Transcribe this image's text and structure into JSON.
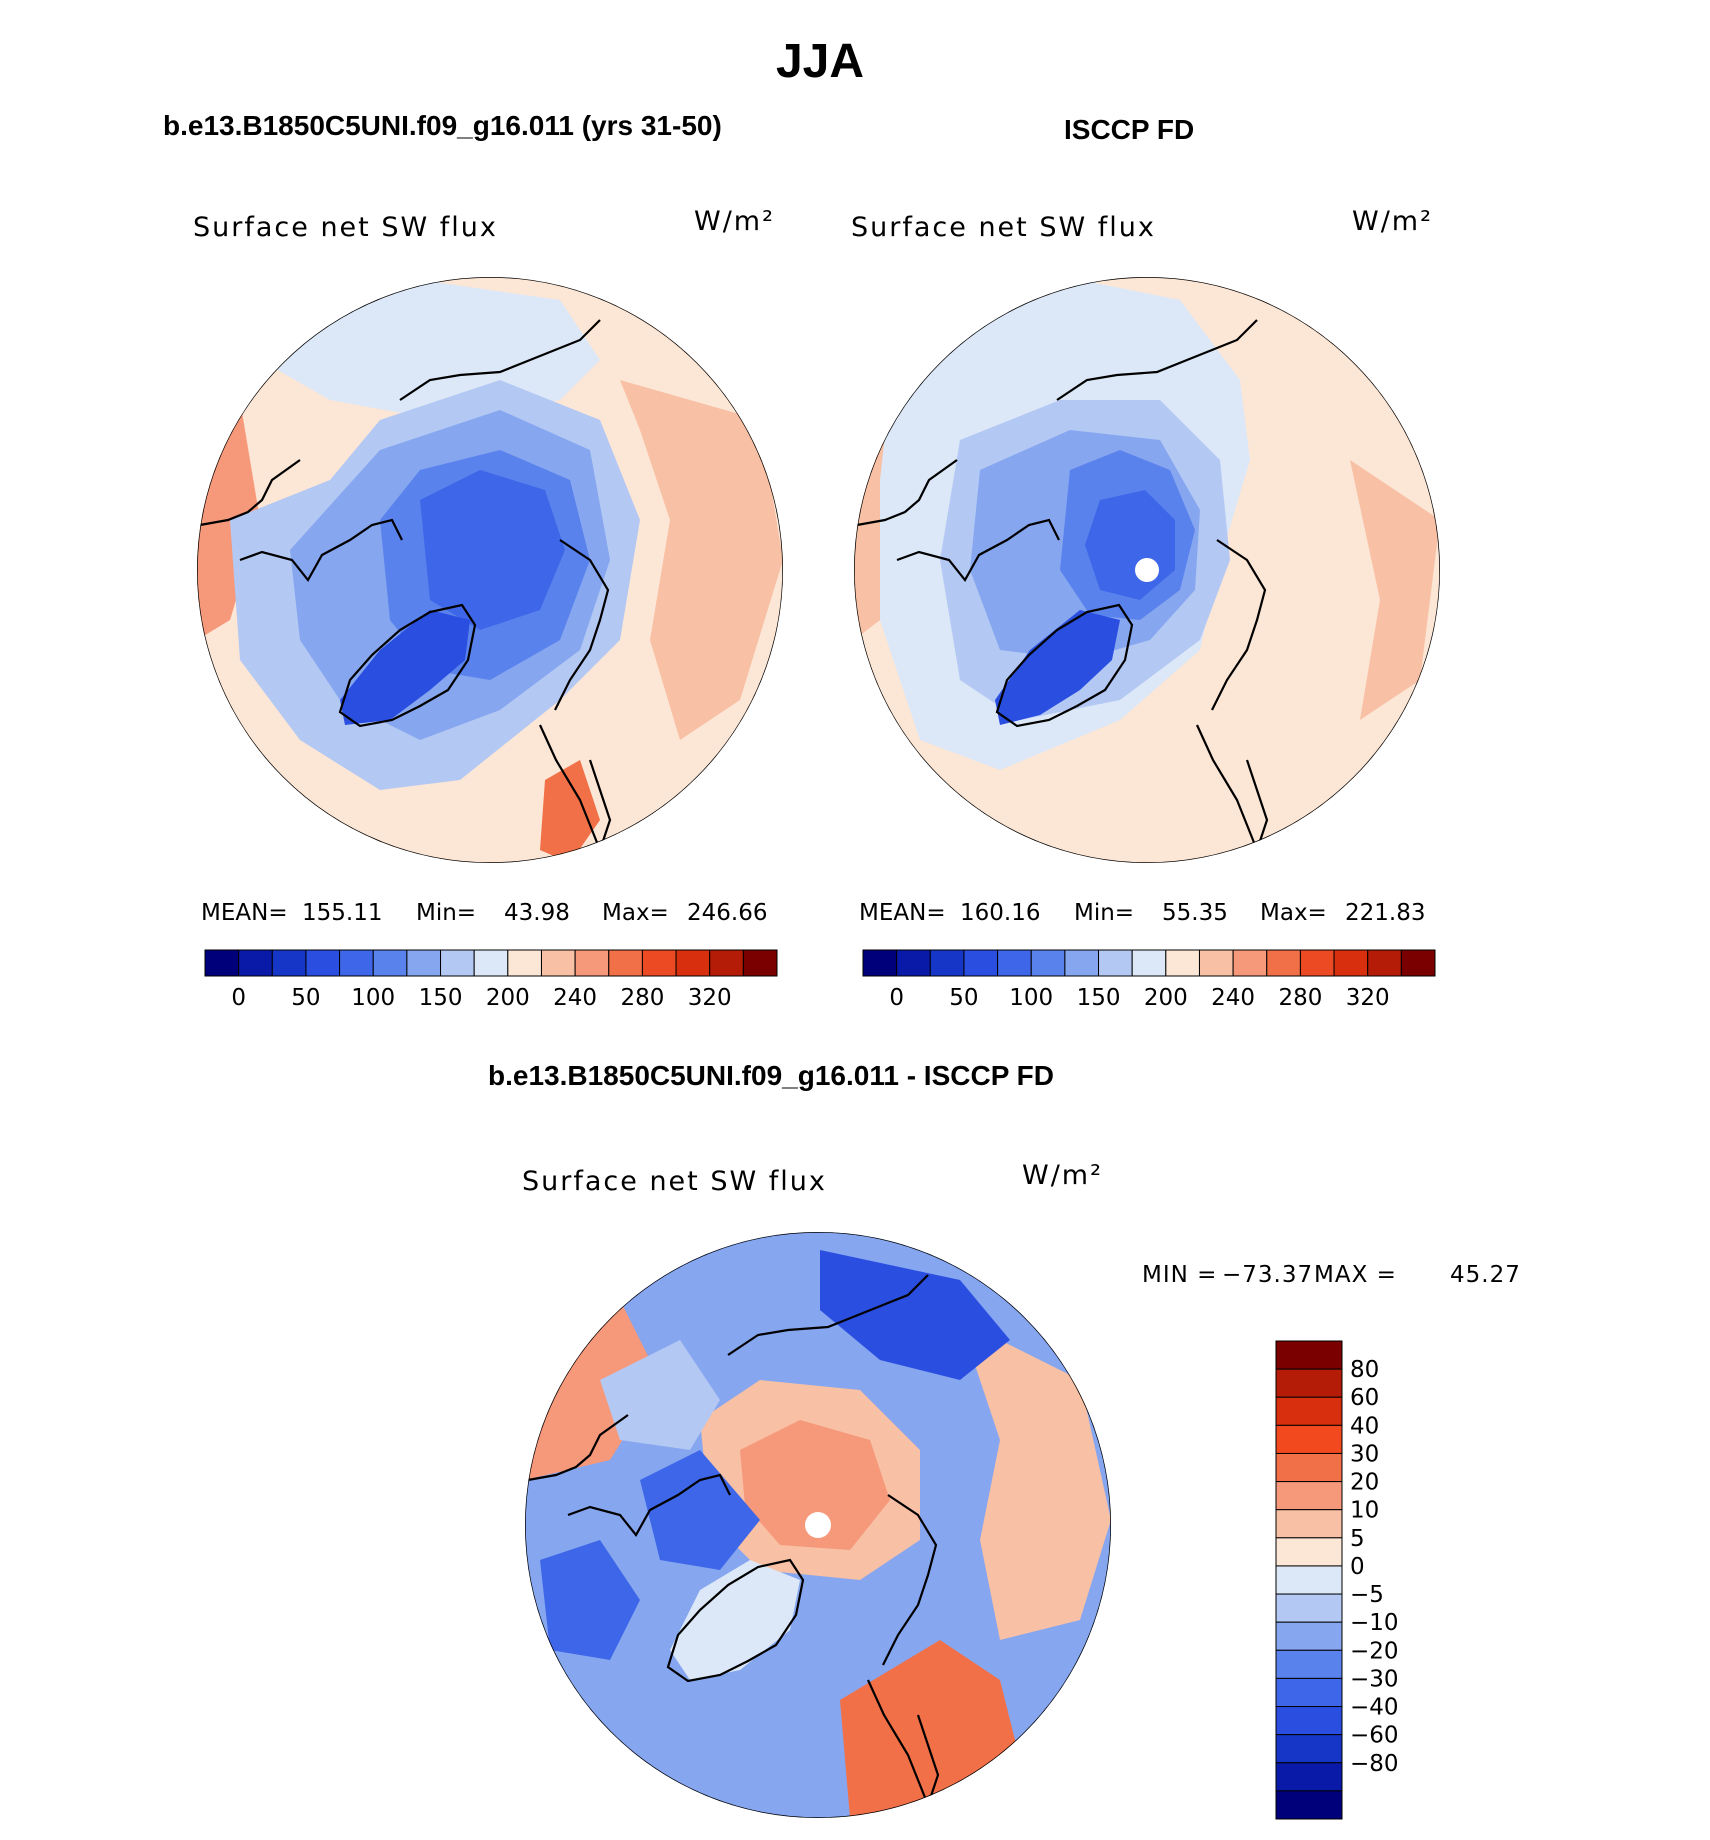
{
  "page": {
    "main_title": "JJA",
    "left_title": "b.e13.B1850C5UNI.f09_g16.011 (yrs 31-50)",
    "right_title": "ISCCP FD",
    "diff_title": "b.e13.B1850C5UNI.f09_g16.011 - ISCCP FD"
  },
  "chart_data": [
    {
      "type": "heatmap",
      "projection": "north-polar-stereographic",
      "title": "Surface net SW flux",
      "units": "W/m²",
      "stats": {
        "mean_label": "MEAN=",
        "mean": "155.11",
        "min_label": "Min=",
        "min": "43.98",
        "max_label": "Max=",
        "max": "246.66"
      },
      "colorbar": {
        "orientation": "horizontal",
        "levels": [
          0,
          25,
          50,
          75,
          100,
          125,
          150,
          175,
          200,
          220,
          240,
          260,
          280,
          300,
          320
        ],
        "tick_labels": [
          "0",
          "50",
          "100",
          "150",
          "200",
          "240",
          "280",
          "320"
        ]
      }
    },
    {
      "type": "heatmap",
      "projection": "north-polar-stereographic",
      "title": "Surface net SW flux",
      "units": "W/m²",
      "stats": {
        "mean_label": "MEAN=",
        "mean": "160.16",
        "min_label": "Min=",
        "min": "55.35",
        "max_label": "Max=",
        "max": "221.83"
      },
      "colorbar": {
        "orientation": "horizontal",
        "levels": [
          0,
          25,
          50,
          75,
          100,
          125,
          150,
          175,
          200,
          220,
          240,
          260,
          280,
          300,
          320
        ],
        "tick_labels": [
          "0",
          "50",
          "100",
          "150",
          "200",
          "240",
          "280",
          "320"
        ]
      }
    },
    {
      "type": "heatmap",
      "projection": "north-polar-stereographic",
      "title": "Surface net SW flux",
      "units": "W/m²",
      "stats": {
        "min_label": "MIN =",
        "min": "−73.37",
        "max_label": "MAX =",
        "max": "45.27"
      },
      "colorbar": {
        "orientation": "vertical",
        "levels": [
          80,
          60,
          40,
          30,
          20,
          10,
          5,
          0,
          -5,
          -10,
          -20,
          -30,
          -40,
          -60,
          -80
        ],
        "tick_labels": [
          "80",
          "60",
          "40",
          "30",
          "20",
          "10",
          "5",
          "0",
          "−5",
          "−10",
          "−20",
          "−30",
          "−40",
          "−60",
          "−80"
        ]
      }
    }
  ],
  "palette": {
    "horizontal": [
      "#00007a",
      "#0a1aa8",
      "#1636c8",
      "#2a4ee0",
      "#3e66e8",
      "#5a82ec",
      "#86a6f0",
      "#b4c8f4",
      "#dce8f8",
      "#fce6d6",
      "#f8c0a4",
      "#f6987a",
      "#f27048",
      "#ec4a22",
      "#d8300e",
      "#b41c08",
      "#7a0000"
    ],
    "vertical": [
      "#7a0000",
      "#b41c08",
      "#d8300e",
      "#f24a1e",
      "#f27048",
      "#f6987a",
      "#f8c0a4",
      "#fce6d6",
      "#dce8f8",
      "#b4c8f4",
      "#86a6f0",
      "#5a82ec",
      "#3e66e8",
      "#2a4ee0",
      "#1636c8",
      "#0a1aa8",
      "#00007a"
    ],
    "land_outline": "#000000"
  }
}
